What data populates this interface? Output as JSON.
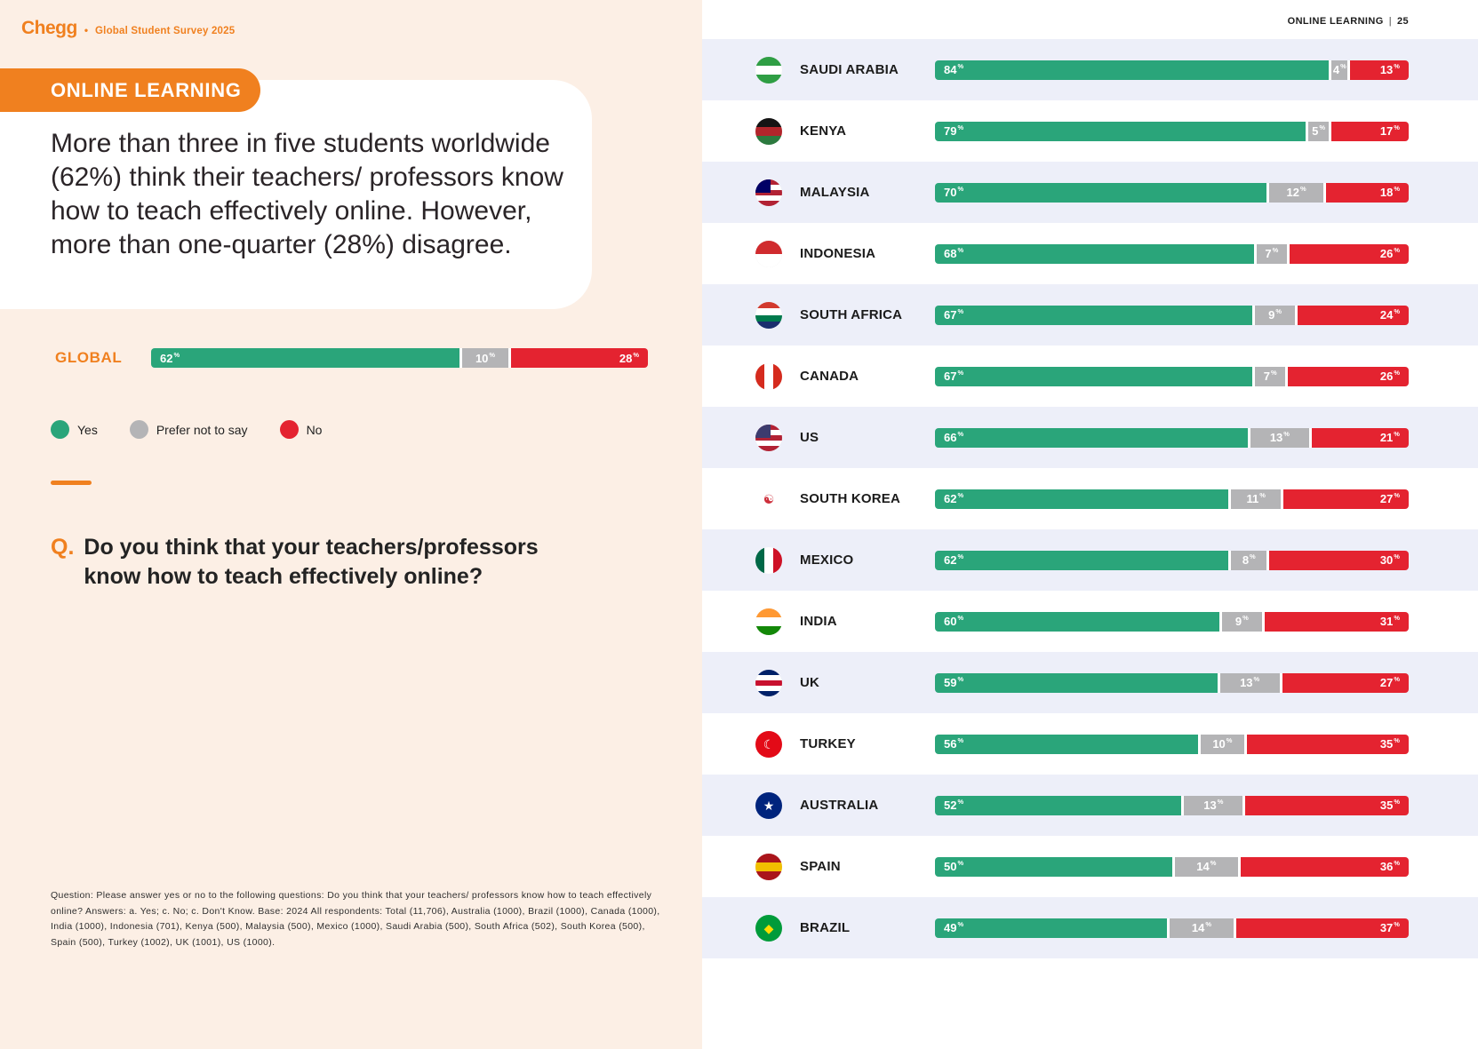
{
  "brand": {
    "logo": "Chegg",
    "dot": "•",
    "survey_title": "Global Student Survey 2025"
  },
  "right_header": {
    "label": "ONLINE LEARNING",
    "separator": "|",
    "page_number": "25"
  },
  "banner": {
    "title": "ONLINE LEARNING"
  },
  "headline": "More than three in five students worldwide (62%) think their teachers/ professors know how to teach effectively online. However, more than one-quarter (28%) disagree.",
  "legend": [
    {
      "label": "Yes",
      "color": "#2AA57A"
    },
    {
      "label": "Prefer not to say",
      "color": "#B4B4B6"
    },
    {
      "label": "No",
      "color": "#E42330"
    }
  ],
  "question": {
    "prefix": "Q.",
    "text": "Do you think that your teachers/professors know how to teach effectively online?"
  },
  "footnote": "Question: Please answer yes or no to the following questions: Do you think that your teachers/ professors know how to teach effectively online?  Answers: a. Yes; c. No; c. Don't Know. Base: 2024 All respondents: Total (11,706), Australia (1000), Brazil (1000), Canada (1000), India (1000), Indonesia (701), Kenya (500), Malaysia (500), Mexico (1000), Saudi Arabia (500), South Africa (502), South Korea (500), Spain (500), Turkey (1002), UK (1001), US (1000).",
  "chart_data": {
    "type": "bar",
    "stacked": true,
    "orientation": "horizontal",
    "unit": "%",
    "series": [
      "Yes",
      "Prefer not to say",
      "No"
    ],
    "colors": [
      "#2AA57A",
      "#B4B4B6",
      "#E42330"
    ],
    "global": {
      "label": "GLOBAL",
      "values": [
        62,
        10,
        28
      ]
    },
    "countries": [
      {
        "name": "SAUDI ARABIA",
        "values": [
          84,
          4,
          13
        ],
        "flag": {
          "o": "h",
          "s": [
            "#2f9e44",
            "#ffffff",
            "#2f9e44"
          ]
        }
      },
      {
        "name": "KENYA",
        "values": [
          79,
          5,
          17
        ],
        "flag": {
          "o": "h",
          "s": [
            "#141414",
            "#b2252b",
            "#2c7a3f"
          ]
        }
      },
      {
        "name": "MALAYSIA",
        "values": [
          70,
          12,
          18
        ],
        "flag": {
          "o": "h",
          "s": [
            "#b22234",
            "#ffffff",
            "#b22234",
            "#ffffff",
            "#b22234"
          ],
          "corner": "#010066"
        }
      },
      {
        "name": "INDONESIA",
        "values": [
          68,
          7,
          26
        ],
        "flag": {
          "o": "h",
          "s": [
            "#d02b2e",
            "#ffffff"
          ]
        }
      },
      {
        "name": "SOUTH AFRICA",
        "values": [
          67,
          9,
          24
        ],
        "flag": {
          "o": "h",
          "s": [
            "#d23a2e",
            "#ffffff",
            "#007a4d",
            "#1a2e6e"
          ]
        }
      },
      {
        "name": "CANADA",
        "values": [
          67,
          7,
          26
        ],
        "flag": {
          "o": "v",
          "s": [
            "#d52b1e",
            "#ffffff",
            "#d52b1e"
          ]
        }
      },
      {
        "name": "US",
        "values": [
          66,
          13,
          21
        ],
        "flag": {
          "o": "h",
          "s": [
            "#b22234",
            "#ffffff",
            "#b22234",
            "#ffffff",
            "#b22234"
          ],
          "corner": "#3c3b6e"
        }
      },
      {
        "name": "SOUTH KOREA",
        "values": [
          62,
          11,
          27
        ],
        "flag": {
          "o": "h",
          "s": [
            "#ffffff"
          ],
          "glyph": {
            "char": "☯",
            "color": "#cd2e3a"
          }
        }
      },
      {
        "name": "MEXICO",
        "values": [
          62,
          8,
          30
        ],
        "flag": {
          "o": "v",
          "s": [
            "#006847",
            "#ffffff",
            "#ce1126"
          ]
        }
      },
      {
        "name": "INDIA",
        "values": [
          60,
          9,
          31
        ],
        "flag": {
          "o": "h",
          "s": [
            "#ff9933",
            "#ffffff",
            "#138808"
          ]
        }
      },
      {
        "name": "UK",
        "values": [
          59,
          13,
          27
        ],
        "flag": {
          "o": "h",
          "s": [
            "#012169",
            "#ffffff",
            "#c8102e",
            "#ffffff",
            "#012169"
          ]
        }
      },
      {
        "name": "TURKEY",
        "values": [
          56,
          10,
          35
        ],
        "flag": {
          "o": "h",
          "s": [
            "#e30a17"
          ],
          "glyph": {
            "char": "☾",
            "color": "#ffffff"
          }
        }
      },
      {
        "name": "AUSTRALIA",
        "values": [
          52,
          13,
          35
        ],
        "flag": {
          "o": "h",
          "s": [
            "#00247d"
          ],
          "glyph": {
            "char": "★",
            "color": "#ffffff"
          }
        }
      },
      {
        "name": "SPAIN",
        "values": [
          50,
          14,
          36
        ],
        "flag": {
          "o": "h",
          "s": [
            "#aa151b",
            "#f1bf00",
            "#aa151b"
          ]
        }
      },
      {
        "name": "BRAZIL",
        "values": [
          49,
          14,
          37
        ],
        "flag": {
          "o": "h",
          "s": [
            "#009b3a"
          ],
          "glyph": {
            "char": "◆",
            "color": "#fedd00"
          }
        }
      }
    ]
  }
}
